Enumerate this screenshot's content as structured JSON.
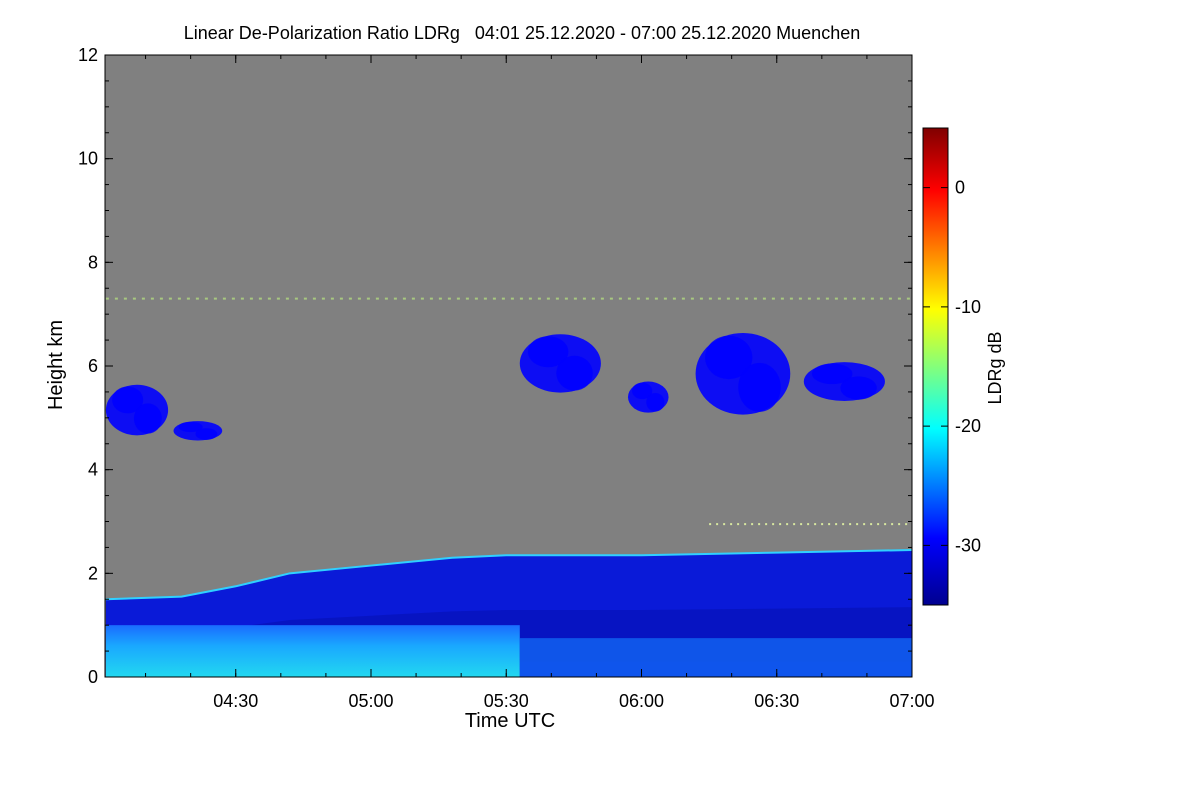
{
  "chart_data": {
    "type": "heatmap",
    "title": "Linear De-Polarization Ratio LDRg   04:01 25.12.2020 - 07:00 25.12.2020 Muenchen",
    "xlabel": "Time UTC",
    "ylabel": "Height km",
    "x_range_hours": [
      4.0167,
      7.0
    ],
    "x_ticks": [
      {
        "label": "04:30",
        "value": 4.5
      },
      {
        "label": "05:00",
        "value": 5.0
      },
      {
        "label": "05:30",
        "value": 5.5
      },
      {
        "label": "06:00",
        "value": 6.0
      },
      {
        "label": "06:30",
        "value": 6.5
      },
      {
        "label": "07:00",
        "value": 7.0
      }
    ],
    "ylim": [
      0,
      12
    ],
    "y_ticks": [
      {
        "label": "0",
        "value": 0
      },
      {
        "label": "2",
        "value": 2
      },
      {
        "label": "4",
        "value": 4
      },
      {
        "label": "6",
        "value": 6
      },
      {
        "label": "8",
        "value": 8
      },
      {
        "label": "10",
        "value": 10
      },
      {
        "label": "12",
        "value": 12
      }
    ],
    "colorbar": {
      "label": "LDRg dB",
      "range": [
        -35,
        5
      ],
      "ticks": [
        {
          "label": "0",
          "value": 0
        },
        {
          "label": "-10",
          "value": -10
        },
        {
          "label": "-20",
          "value": -20
        },
        {
          "label": "-30",
          "value": -30
        }
      ],
      "colormap": [
        "#00008f",
        "#0000ff",
        "#00ffff",
        "#ffff00",
        "#ff0000",
        "#800000"
      ]
    },
    "no_data_color": "#808080",
    "boundary_layer_top_km": [
      {
        "t": 4.02,
        "h": 1.5
      },
      {
        "t": 4.3,
        "h": 1.55
      },
      {
        "t": 4.5,
        "h": 1.75
      },
      {
        "t": 4.7,
        "h": 2.0
      },
      {
        "t": 5.0,
        "h": 2.15
      },
      {
        "t": 5.3,
        "h": 2.3
      },
      {
        "t": 5.5,
        "h": 2.35
      },
      {
        "t": 6.0,
        "h": 2.35
      },
      {
        "t": 6.5,
        "h": 2.4
      },
      {
        "t": 7.0,
        "h": 2.45
      }
    ],
    "cloud_layers": [
      {
        "t0": 4.02,
        "t1": 4.25,
        "h0": 4.5,
        "h1": 5.8,
        "ldr_db": -31
      },
      {
        "t0": 4.27,
        "t1": 4.45,
        "h0": 4.5,
        "h1": 5.0,
        "ldr_db": -31
      },
      {
        "t0": 5.55,
        "t1": 5.85,
        "h0": 5.3,
        "h1": 6.8,
        "ldr_db": -28
      },
      {
        "t0": 5.95,
        "t1": 6.1,
        "h0": 5.0,
        "h1": 5.8,
        "ldr_db": -28
      },
      {
        "t0": 6.2,
        "t1": 6.55,
        "h0": 4.8,
        "h1": 6.9,
        "ldr_db": -28
      },
      {
        "t0": 6.6,
        "t1": 6.9,
        "h0": 5.2,
        "h1": 6.2,
        "ldr_db": -27
      }
    ],
    "near_surface_layer": {
      "t0": 4.02,
      "t1": 5.55,
      "h0": 0,
      "h1": 1.0,
      "ldr_db": -22
    }
  }
}
